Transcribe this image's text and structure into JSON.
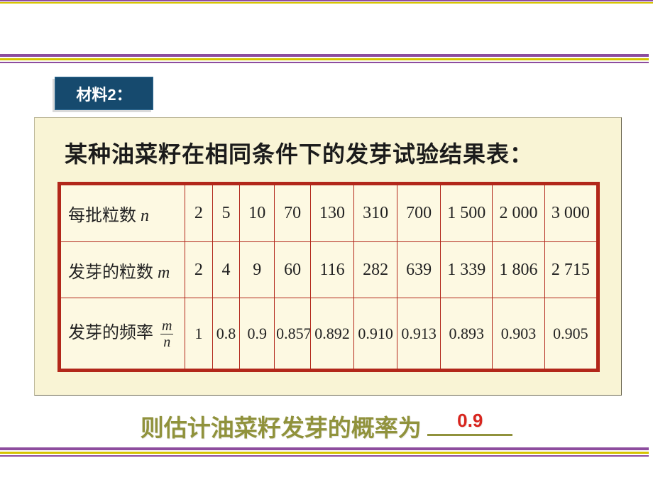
{
  "badge": {
    "label": "材料2："
  },
  "panel": {
    "title": "某种油菜籽在相同条件下的发芽试验结果表："
  },
  "table": {
    "columns_widths": [
      172,
      38,
      38,
      48,
      50,
      60,
      60,
      60,
      72,
      72,
      72
    ],
    "rows": [
      {
        "header_html": "每批粒数 <span class='it'>n</span>",
        "cells": [
          "2",
          "5",
          "10",
          "70",
          "130",
          "310",
          "700",
          "1 500",
          "2 000",
          "3 000"
        ]
      },
      {
        "header_html": "发芽的粒数 <span class='it'>m</span>",
        "cells": [
          "2",
          "4",
          "9",
          "60",
          "116",
          "282",
          "639",
          "1 339",
          "1 806",
          "2 715"
        ]
      },
      {
        "header_html": "发芽的频率 <span class='frac'><span class='num'>m</span><span class='den'>n</span></span>",
        "cells": [
          "1",
          "0.8",
          "0.9",
          "0.857",
          "0.892",
          "0.910",
          "0.913",
          "0.893",
          "0.903",
          "0.905"
        ]
      }
    ]
  },
  "answer": {
    "prefix": "则估计油菜籽发芽的概率为",
    "value": "0.9"
  },
  "colors": {
    "rule_purple": "#8d4d9e",
    "rule_yellow": "#d6c400",
    "badge_bg": "#164a6e",
    "panel_bg": "#f9f4d5",
    "table_border": "#b2271a",
    "answer_text": "#90923c",
    "answer_value": "#d8251e"
  }
}
